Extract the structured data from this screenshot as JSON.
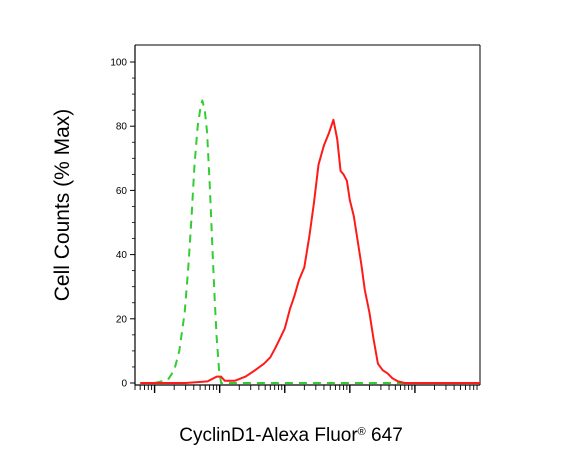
{
  "chart_data": {
    "type": "line",
    "title": "",
    "ylabel": "Cell Counts (% Max)",
    "xlabel": {
      "main": "CyclinD1-Alexa Fluor",
      "mark": "®",
      "suffix": " 647"
    },
    "xscale": "log",
    "xlim": [
      0.5,
      100000
    ],
    "ylim": [
      0,
      100
    ],
    "yticks": [
      "0",
      "20",
      "40",
      "60",
      "80",
      "100"
    ],
    "x_decades": [
      1,
      10,
      100,
      1000,
      10000
    ],
    "grid": false,
    "series": [
      {
        "style": "dashed",
        "color": "#33cc33",
        "points": [
          [
            1.0,
            0
          ],
          [
            1.6,
            1
          ],
          [
            2.0,
            4
          ],
          [
            2.4,
            10
          ],
          [
            2.9,
            22
          ],
          [
            3.3,
            36
          ],
          [
            3.7,
            52
          ],
          [
            4.1,
            68
          ],
          [
            4.6,
            80
          ],
          [
            5.1,
            86
          ],
          [
            5.4,
            88
          ],
          [
            5.9,
            85
          ],
          [
            6.4,
            78
          ],
          [
            7.1,
            60
          ],
          [
            7.8,
            40
          ],
          [
            8.4,
            26
          ],
          [
            9.0,
            14
          ],
          [
            9.8,
            4
          ],
          [
            10.5,
            0
          ],
          [
            12,
            0
          ],
          [
            2000,
            0
          ],
          [
            20000,
            0
          ]
        ]
      },
      {
        "style": "solid",
        "color": "#ff1a1a",
        "points": [
          [
            0.6,
            0
          ],
          [
            3,
            0
          ],
          [
            6.5,
            0.5
          ],
          [
            9,
            2
          ],
          [
            10.5,
            2
          ],
          [
            12,
            0.7
          ],
          [
            17,
            0.7
          ],
          [
            25,
            2
          ],
          [
            35,
            4
          ],
          [
            48,
            6
          ],
          [
            60,
            8
          ],
          [
            72,
            11
          ],
          [
            85,
            14
          ],
          [
            100,
            17
          ],
          [
            120,
            23
          ],
          [
            140,
            27
          ],
          [
            165,
            32
          ],
          [
            200,
            36
          ],
          [
            240,
            46
          ],
          [
            280,
            56
          ],
          [
            330,
            68
          ],
          [
            400,
            74
          ],
          [
            480,
            78
          ],
          [
            560,
            82
          ],
          [
            640,
            76
          ],
          [
            720,
            66
          ],
          [
            800,
            65
          ],
          [
            900,
            63
          ],
          [
            1000,
            57
          ],
          [
            1150,
            52
          ],
          [
            1300,
            45
          ],
          [
            1500,
            37
          ],
          [
            1700,
            29
          ],
          [
            2000,
            22
          ],
          [
            2300,
            14
          ],
          [
            2700,
            6
          ],
          [
            3200,
            4
          ],
          [
            3800,
            3
          ],
          [
            4500,
            1.5
          ],
          [
            5500,
            0.5
          ],
          [
            7000,
            0
          ],
          [
            10000,
            0
          ],
          [
            20000,
            0
          ],
          [
            100000,
            0
          ]
        ]
      }
    ]
  }
}
